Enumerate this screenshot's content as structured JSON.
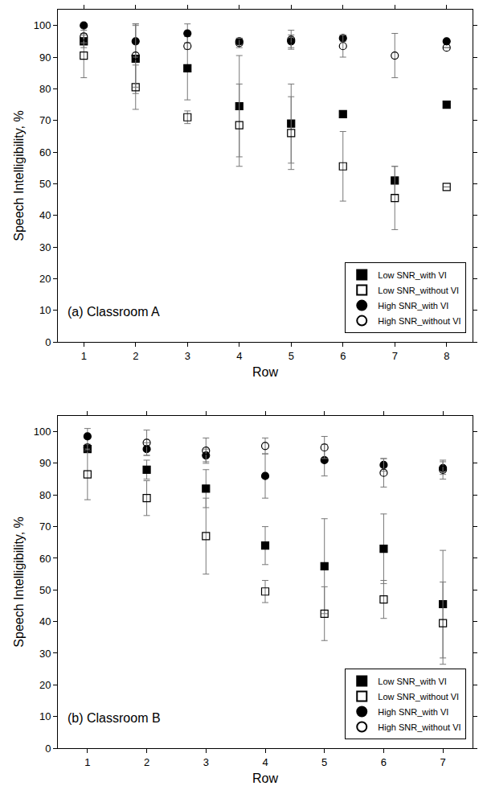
{
  "chart_data": [
    {
      "type": "scatter",
      "annotations": [
        "(a) Classroom A"
      ],
      "x_label": "Row",
      "y_label": "Speech Intelligibility, %",
      "x": [
        1,
        2,
        3,
        4,
        5,
        6,
        7,
        8
      ],
      "xlim": [
        0.5,
        8.5
      ],
      "xticks": [
        1,
        2,
        3,
        4,
        5,
        6,
        7,
        8
      ],
      "ylim": [
        0,
        105
      ],
      "yticks": [
        0,
        10,
        20,
        30,
        40,
        50,
        60,
        70,
        80,
        90,
        100
      ],
      "legend": "lower right",
      "series": [
        {
          "name": "Low SNR_with VI",
          "color": "#000000",
          "marker": "square",
          "values": [
            95,
            89.5,
            86.5,
            74.5,
            69,
            72,
            51,
            75
          ],
          "errors": [
            2,
            11,
            10,
            16,
            12.5,
            1,
            4.5,
            0
          ]
        },
        {
          "name": "Low SNR_without VI",
          "color": "#000000",
          "marker": "square-open",
          "values": [
            90.5,
            80.5,
            71,
            68.5,
            66,
            55.5,
            45.5,
            49
          ],
          "errors": [
            7,
            7,
            2,
            13,
            11.5,
            11,
            10,
            0
          ]
        },
        {
          "name": "High SNR_with VI",
          "color": "#000000",
          "marker": "circle",
          "values": [
            100,
            95,
            97.5,
            95,
            95,
            96,
            null,
            95
          ],
          "errors": [
            0,
            5,
            3,
            1,
            2,
            1,
            null,
            0
          ]
        },
        {
          "name": "High SNR_without VI",
          "color": "#000000",
          "marker": "circle-open",
          "values": [
            96.5,
            90.5,
            93.5,
            94.5,
            95.5,
            93.5,
            90.5,
            93
          ],
          "errors": [
            2,
            10,
            1,
            1.5,
            3,
            3.5,
            7,
            0
          ]
        }
      ]
    },
    {
      "type": "scatter",
      "annotations": [
        "(b) Classroom B"
      ],
      "x_label": "Row",
      "y_label": "Speech Intelligibility, %",
      "x": [
        1,
        2,
        3,
        4,
        5,
        6,
        7
      ],
      "xlim": [
        0.5,
        7.5
      ],
      "xticks": [
        1,
        2,
        3,
        4,
        5,
        6,
        7
      ],
      "ylim": [
        0,
        105
      ],
      "yticks": [
        0,
        10,
        20,
        30,
        40,
        50,
        60,
        70,
        80,
        90,
        100
      ],
      "legend": "lower right",
      "series": [
        {
          "name": "Low SNR_with VI",
          "color": "#000000",
          "marker": "square",
          "values": [
            94.5,
            88,
            82,
            64,
            57.5,
            63,
            45.5
          ],
          "errors": [
            1,
            3,
            6,
            6,
            15,
            11,
            17
          ]
        },
        {
          "name": "Low SNR_without VI",
          "color": "#000000",
          "marker": "square-open",
          "values": [
            86.5,
            79,
            67,
            49.5,
            42.5,
            47,
            39.5
          ],
          "errors": [
            8,
            5.5,
            12,
            3.5,
            8.5,
            6,
            13
          ]
        },
        {
          "name": "High SNR_with VI",
          "color": "#000000",
          "marker": "circle",
          "values": [
            98.5,
            94.5,
            92.5,
            86,
            91,
            89.5,
            88.5
          ],
          "errors": [
            2.5,
            2,
            2,
            7,
            5,
            2,
            2
          ]
        },
        {
          "name": "High SNR_without VI",
          "color": "#000000",
          "marker": "circle-open",
          "values": [
            95,
            96.5,
            94,
            95.5,
            95,
            87,
            88
          ],
          "errors": [
            1,
            4,
            4,
            2.5,
            3.5,
            4.5,
            3
          ]
        }
      ]
    }
  ]
}
